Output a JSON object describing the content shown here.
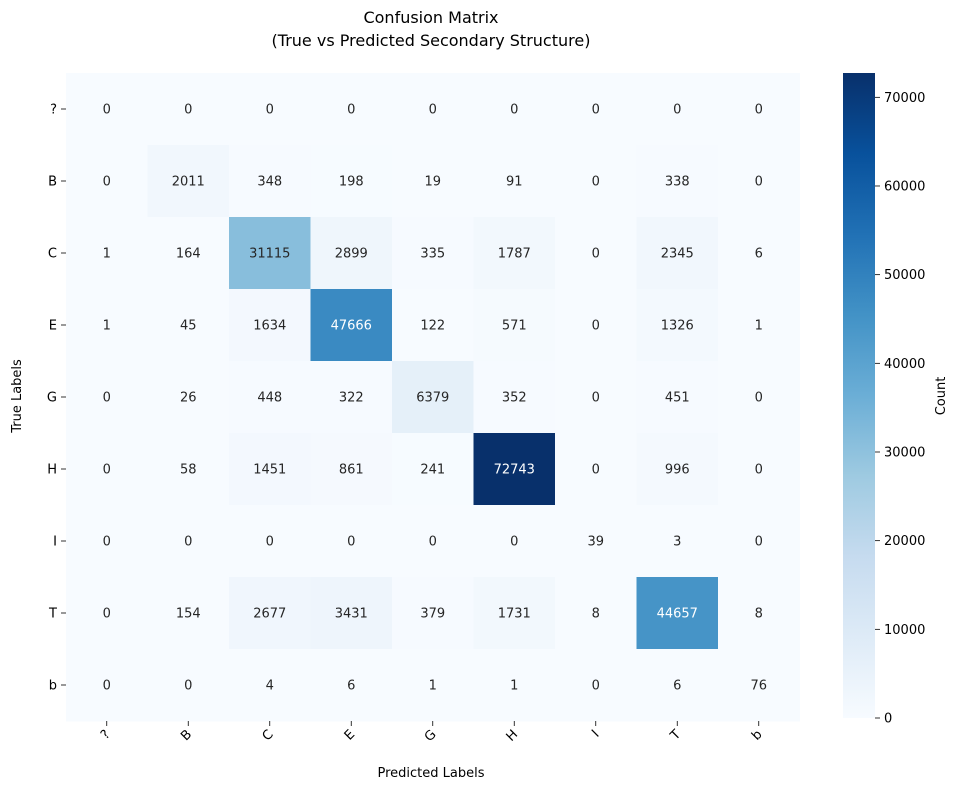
{
  "chart_data": {
    "type": "heatmap",
    "title_lines": [
      "Confusion Matrix",
      "(True vs Predicted Secondary Structure)"
    ],
    "xlabel": "Predicted Labels",
    "ylabel": "True Labels",
    "x_categories": [
      "?",
      "B",
      "C",
      "E",
      "G",
      "H",
      "I",
      "T",
      "b"
    ],
    "y_categories": [
      "?",
      "B",
      "C",
      "E",
      "G",
      "H",
      "I",
      "T",
      "b"
    ],
    "values": [
      [
        0,
        0,
        0,
        0,
        0,
        0,
        0,
        0,
        0
      ],
      [
        0,
        2011,
        348,
        198,
        19,
        91,
        0,
        338,
        0
      ],
      [
        1,
        164,
        31115,
        2899,
        335,
        1787,
        0,
        2345,
        6
      ],
      [
        1,
        45,
        1634,
        47666,
        122,
        571,
        0,
        1326,
        1
      ],
      [
        0,
        26,
        448,
        322,
        6379,
        352,
        0,
        451,
        0
      ],
      [
        0,
        58,
        1451,
        861,
        241,
        72743,
        0,
        996,
        0
      ],
      [
        0,
        0,
        0,
        0,
        0,
        0,
        39,
        3,
        0
      ],
      [
        0,
        154,
        2677,
        3431,
        379,
        1731,
        8,
        44657,
        8
      ],
      [
        0,
        0,
        4,
        6,
        1,
        1,
        0,
        6,
        76
      ]
    ],
    "colorbar": {
      "label": "Count",
      "range": [
        0,
        72743
      ],
      "ticks": [
        0,
        10000,
        20000,
        30000,
        40000,
        50000,
        60000,
        70000
      ],
      "colormap": "Blues",
      "colormap_stops": [
        "#f7fbff",
        "#deebf7",
        "#c6dbef",
        "#9ecae1",
        "#6baed6",
        "#4292c6",
        "#2171b5",
        "#08519c",
        "#08306b"
      ]
    },
    "annotation_text_dark": "#262626",
    "annotation_text_light": "#ffffff"
  }
}
